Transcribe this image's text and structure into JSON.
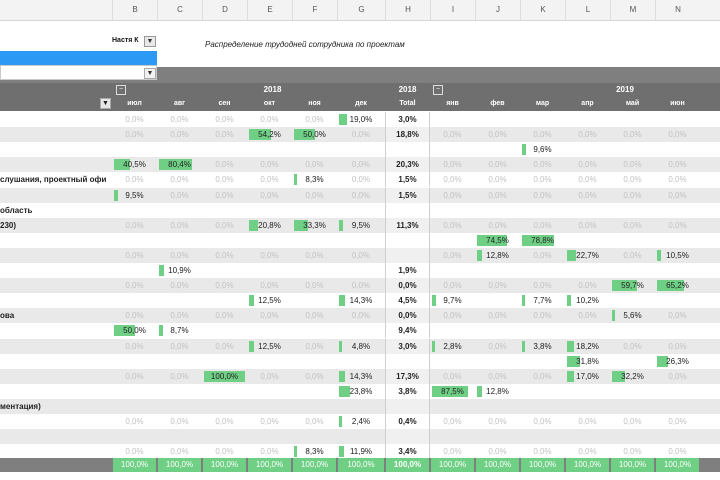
{
  "column_letters": [
    "B",
    "C",
    "D",
    "E",
    "F",
    "G",
    "H",
    "I",
    "J",
    "K",
    "L",
    "M",
    "N"
  ],
  "header": {
    "chooser_label": "Настя К",
    "title_note": "Распределение трудодней сотрудника по проектам"
  },
  "years": {
    "y2018": "2018",
    "total_year": "2018",
    "total_label": "Total",
    "y2019": "2019"
  },
  "months": [
    "июл",
    "авг",
    "сен",
    "окт",
    "ноя",
    "дек",
    "",
    "янв",
    "фев",
    "мар",
    "апр",
    "май",
    "июн"
  ],
  "rows": [
    {
      "label": "",
      "shade": "white",
      "cells": [
        "0,0%",
        "0,0%",
        "0,0%",
        "0,0%",
        "0,0%",
        "19,0%",
        "3,0%",
        "",
        "",
        "",
        "",
        "",
        ""
      ],
      "bars": [
        0,
        0,
        0,
        0,
        0,
        19,
        0,
        0,
        0,
        0,
        0,
        0,
        0
      ]
    },
    {
      "label": "",
      "shade": "grey",
      "cells": [
        "0,0%",
        "0,0%",
        "0,0%",
        "54,2%",
        "50,0%",
        "0,0%",
        "18,8%",
        "0,0%",
        "0,0%",
        "0,0%",
        "0,0%",
        "0,0%",
        "0,0%"
      ],
      "bars": [
        0,
        0,
        0,
        54,
        50,
        0,
        0,
        0,
        0,
        0,
        0,
        0,
        0
      ]
    },
    {
      "label": "",
      "shade": "white",
      "cells": [
        "",
        "",
        "",
        "",
        "",
        "",
        "",
        "",
        "",
        "9,6%",
        "",
        "",
        ""
      ],
      "bars": [
        0,
        0,
        0,
        0,
        0,
        0,
        0,
        0,
        0,
        10,
        0,
        0,
        0
      ]
    },
    {
      "label": "",
      "shade": "grey",
      "cells": [
        "40,5%",
        "80,4%",
        "0,0%",
        "0,0%",
        "0,0%",
        "0,0%",
        "20,3%",
        "0,0%",
        "0,0%",
        "0,0%",
        "0,0%",
        "0,0%",
        "0,0%"
      ],
      "bars": [
        40,
        80,
        0,
        0,
        0,
        0,
        0,
        0,
        0,
        0,
        0,
        0,
        0
      ]
    },
    {
      "label": "слушания, проектный офи",
      "shade": "white",
      "cells": [
        "0,0%",
        "0,0%",
        "0,0%",
        "0,0%",
        "8,3%",
        "0,0%",
        "1,5%",
        "0,0%",
        "0,0%",
        "0,0%",
        "0,0%",
        "0,0%",
        "0,0%"
      ],
      "bars": [
        0,
        0,
        0,
        0,
        8,
        0,
        0,
        0,
        0,
        0,
        0,
        0,
        0
      ]
    },
    {
      "label": "",
      "shade": "grey",
      "cells": [
        "9,5%",
        "0,0%",
        "0,0%",
        "0,0%",
        "0,0%",
        "0,0%",
        "1,5%",
        "0,0%",
        "0,0%",
        "0,0%",
        "0,0%",
        "0,0%",
        "0,0%"
      ],
      "bars": [
        9,
        0,
        0,
        0,
        0,
        0,
        0,
        0,
        0,
        0,
        0,
        0,
        0
      ]
    },
    {
      "label": "область",
      "shade": "white",
      "cells": [
        "",
        "",
        "",
        "",
        "",
        "",
        "",
        "",
        "",
        "",
        "",
        "",
        ""
      ],
      "bars": [
        0,
        0,
        0,
        0,
        0,
        0,
        0,
        0,
        0,
        0,
        0,
        0,
        0
      ]
    },
    {
      "label": "230)",
      "shade": "grey",
      "cells": [
        "0,0%",
        "0,0%",
        "0,0%",
        "20,8%",
        "33,3%",
        "9,5%",
        "11,3%",
        "0,0%",
        "0,0%",
        "0,0%",
        "0,0%",
        "0,0%",
        "0,0%"
      ],
      "bars": [
        0,
        0,
        0,
        21,
        33,
        9,
        0,
        0,
        0,
        0,
        0,
        0,
        0
      ]
    },
    {
      "label": "",
      "shade": "white",
      "cells": [
        "",
        "",
        "",
        "",
        "",
        "",
        "",
        "",
        "74,5%",
        "78,8%",
        "",
        "",
        ""
      ],
      "bars": [
        0,
        0,
        0,
        0,
        0,
        0,
        0,
        0,
        74,
        79,
        0,
        0,
        0
      ]
    },
    {
      "label": "",
      "shade": "grey",
      "cells": [
        "0,0%",
        "0,0%",
        "0,0%",
        "0,0%",
        "0,0%",
        "0,0%",
        "",
        "0,0%",
        "12,8%",
        "0,0%",
        "22,7%",
        "0,0%",
        "10,5%"
      ],
      "bars": [
        0,
        0,
        0,
        0,
        0,
        0,
        0,
        0,
        13,
        0,
        23,
        0,
        10
      ]
    },
    {
      "label": "",
      "shade": "white",
      "cells": [
        "",
        "10,9%",
        "",
        "",
        "",
        "",
        "1,9%",
        "",
        "",
        "",
        "",
        "",
        ""
      ],
      "bars": [
        0,
        11,
        0,
        0,
        0,
        0,
        0,
        0,
        0,
        0,
        0,
        0,
        0
      ]
    },
    {
      "label": "",
      "shade": "grey",
      "cells": [
        "0,0%",
        "0,0%",
        "0,0%",
        "0,0%",
        "0,0%",
        "0,0%",
        "0,0%",
        "0,0%",
        "0,0%",
        "0,0%",
        "0,0%",
        "59,7%",
        "65,2%"
      ],
      "bars": [
        0,
        0,
        0,
        0,
        0,
        0,
        0,
        0,
        0,
        0,
        0,
        60,
        65
      ]
    },
    {
      "label": "",
      "shade": "white",
      "cells": [
        "",
        "",
        "",
        "12,5%",
        "",
        "14,3%",
        "4,5%",
        "9,7%",
        "",
        "7,7%",
        "10,2%",
        "",
        ""
      ],
      "bars": [
        0,
        0,
        0,
        12,
        0,
        14,
        0,
        10,
        0,
        8,
        10,
        0,
        0
      ]
    },
    {
      "label": "ова",
      "shade": "grey",
      "cells": [
        "0,0%",
        "0,0%",
        "0,0%",
        "0,0%",
        "0,0%",
        "0,0%",
        "0,0%",
        "0,0%",
        "0,0%",
        "0,0%",
        "0,0%",
        "5,6%",
        "0,0%"
      ],
      "bars": [
        0,
        0,
        0,
        0,
        0,
        0,
        0,
        0,
        0,
        0,
        0,
        6,
        0
      ]
    },
    {
      "label": "",
      "shade": "white",
      "cells": [
        "50,0%",
        "8,7%",
        "",
        "",
        "",
        "",
        "9,4%",
        "",
        "",
        "",
        "",
        "",
        ""
      ],
      "bars": [
        50,
        9,
        0,
        0,
        0,
        0,
        0,
        0,
        0,
        0,
        0,
        0,
        0
      ]
    },
    {
      "label": "",
      "shade": "grey",
      "cells": [
        "0,0%",
        "0,0%",
        "0,0%",
        "12,5%",
        "0,0%",
        "4,8%",
        "3,0%",
        "2,8%",
        "0,0%",
        "3,8%",
        "18,2%",
        "0,0%",
        "0,0%"
      ],
      "bars": [
        0,
        0,
        0,
        12,
        0,
        5,
        0,
        3,
        0,
        4,
        18,
        0,
        0
      ]
    },
    {
      "label": "",
      "shade": "white",
      "cells": [
        "",
        "",
        "",
        "",
        "",
        "",
        "",
        "",
        "",
        "",
        "31,8%",
        "",
        "26,3%"
      ],
      "bars": [
        0,
        0,
        0,
        0,
        0,
        0,
        0,
        0,
        0,
        0,
        32,
        0,
        26
      ]
    },
    {
      "label": "",
      "shade": "grey",
      "cells": [
        "0,0%",
        "0,0%",
        "100,0%",
        "0,0%",
        "0,0%",
        "14,3%",
        "17,3%",
        "0,0%",
        "0,0%",
        "0,0%",
        "17,0%",
        "32,2%",
        "0,0%"
      ],
      "bars": [
        0,
        0,
        100,
        0,
        0,
        14,
        0,
        0,
        0,
        0,
        17,
        32,
        0
      ]
    },
    {
      "label": "",
      "shade": "white",
      "cells": [
        "",
        "",
        "",
        "",
        "",
        "23,8%",
        "3,8%",
        "87,5%",
        "12,8%",
        "",
        "",
        "",
        ""
      ],
      "bars": [
        0,
        0,
        0,
        0,
        0,
        24,
        0,
        88,
        13,
        0,
        0,
        0,
        0
      ]
    },
    {
      "label": "ментация)",
      "shade": "grey",
      "cells": [
        "",
        "",
        "",
        "",
        "",
        "",
        "",
        "",
        "",
        "",
        "",
        "",
        ""
      ],
      "bars": [
        0,
        0,
        0,
        0,
        0,
        0,
        0,
        0,
        0,
        0,
        0,
        0,
        0
      ]
    },
    {
      "label": "",
      "shade": "white",
      "cells": [
        "0,0%",
        "0,0%",
        "0,0%",
        "0,0%",
        "0,0%",
        "2,4%",
        "0,4%",
        "0,0%",
        "0,0%",
        "0,0%",
        "0,0%",
        "0,0%",
        "0,0%"
      ],
      "bars": [
        0,
        0,
        0,
        0,
        0,
        2,
        0,
        0,
        0,
        0,
        0,
        0,
        0
      ]
    },
    {
      "label": "",
      "shade": "grey",
      "cells": [
        "",
        "",
        "",
        "",
        "",
        "",
        "",
        "",
        "",
        "",
        "",
        "",
        ""
      ],
      "bars": [
        0,
        0,
        0,
        0,
        0,
        0,
        0,
        0,
        0,
        0,
        0,
        0,
        0
      ]
    },
    {
      "label": "",
      "shade": "white",
      "cells": [
        "0,0%",
        "0,0%",
        "0,0%",
        "0,0%",
        "8,3%",
        "11,9%",
        "3,4%",
        "0,0%",
        "0,0%",
        "0,0%",
        "0,0%",
        "0,0%",
        "0,0%"
      ],
      "bars": [
        0,
        0,
        0,
        0,
        8,
        12,
        0,
        0,
        0,
        0,
        0,
        0,
        0
      ]
    }
  ],
  "totals": [
    "100,0%",
    "100,0%",
    "100,0%",
    "100,0%",
    "100,0%",
    "100,0%",
    "100,0%",
    "100,0%",
    "100,0%",
    "100,0%",
    "100,0%",
    "100,0%",
    "100,0%"
  ],
  "icons": {
    "chooser": "filter-icon",
    "dropdown": "chevron-down-icon",
    "year_collapse": "minus-box-icon",
    "month_filter": "filter-icon"
  },
  "colors": {
    "bar": "#6fcf85",
    "header_bg": "#6f6f6f",
    "select_bar": "#2c9af5"
  }
}
